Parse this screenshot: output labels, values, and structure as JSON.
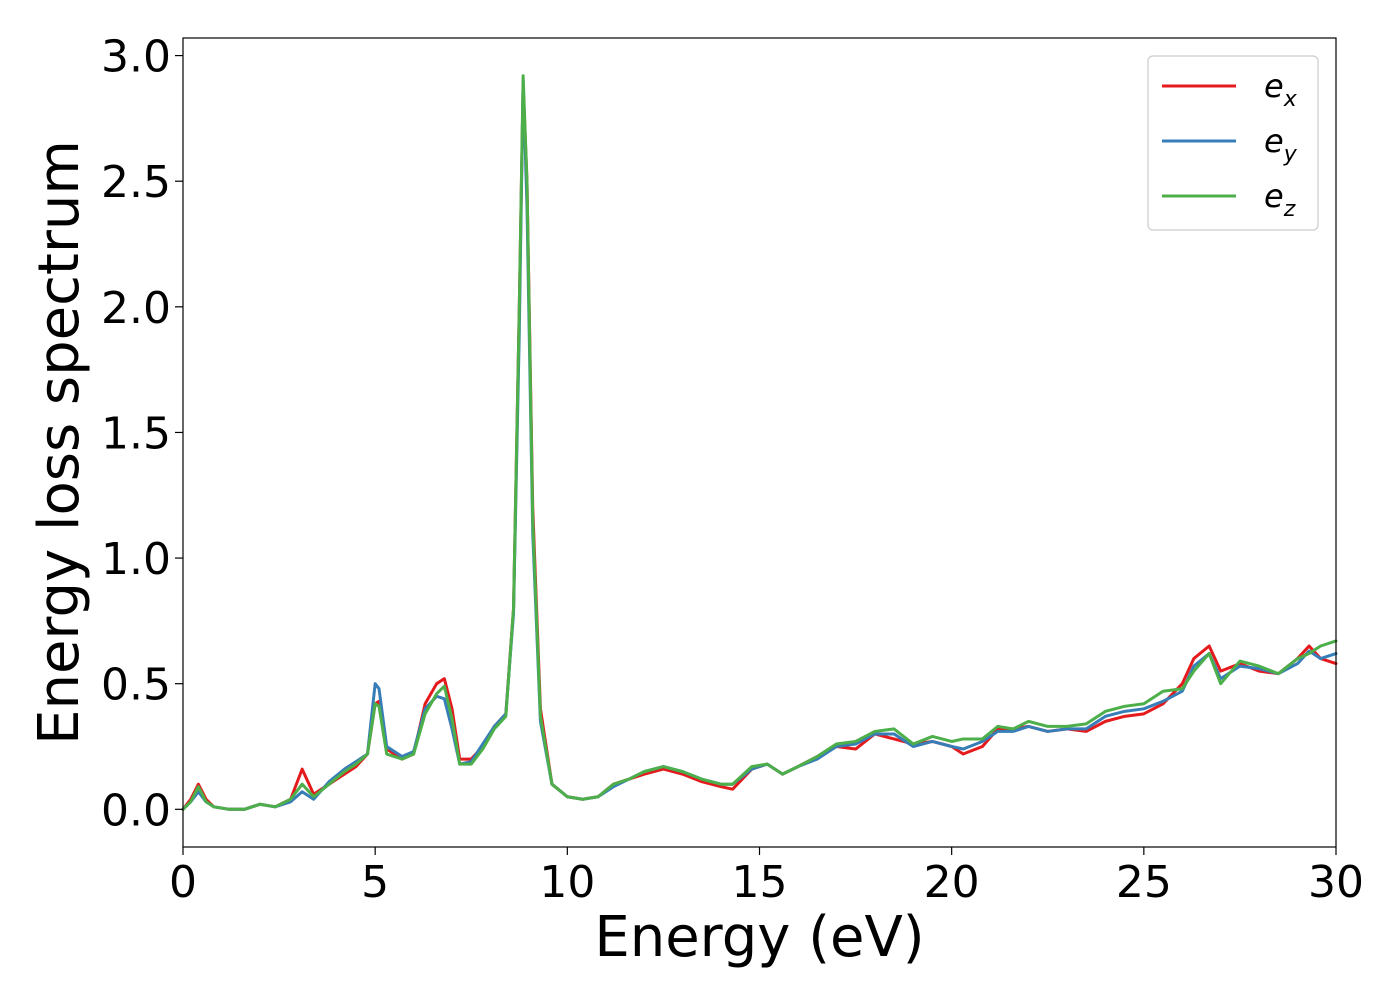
{
  "chart_data": {
    "type": "line",
    "title": "",
    "xlabel": "Energy (eV)",
    "ylabel": "Energy loss spectrum",
    "xlim": [
      0,
      30
    ],
    "ylim": [
      -0.15,
      3.07
    ],
    "xticks": [
      0,
      5,
      10,
      15,
      20,
      25,
      30
    ],
    "xtick_labels": [
      "0",
      "5",
      "10",
      "15",
      "20",
      "25",
      "30"
    ],
    "yticks": [
      0.0,
      0.5,
      1.0,
      1.5,
      2.0,
      2.5,
      3.0
    ],
    "ytick_labels": [
      "0.0",
      "0.5",
      "1.0",
      "1.5",
      "2.0",
      "2.5",
      "3.0"
    ],
    "grid": false,
    "legend_position": "top-right",
    "series": [
      {
        "name": "e",
        "subscript": "x",
        "color": "#e41a1c",
        "points": [
          [
            0,
            0.0
          ],
          [
            0.2,
            0.04
          ],
          [
            0.4,
            0.1
          ],
          [
            0.6,
            0.04
          ],
          [
            0.8,
            0.01
          ],
          [
            1.2,
            0.0
          ],
          [
            1.6,
            0.0
          ],
          [
            2.0,
            0.02
          ],
          [
            2.4,
            0.01
          ],
          [
            2.8,
            0.04
          ],
          [
            3.1,
            0.16
          ],
          [
            3.4,
            0.06
          ],
          [
            3.8,
            0.1
          ],
          [
            4.2,
            0.14
          ],
          [
            4.5,
            0.17
          ],
          [
            4.8,
            0.22
          ],
          [
            5.0,
            0.42
          ],
          [
            5.1,
            0.43
          ],
          [
            5.3,
            0.24
          ],
          [
            5.7,
            0.2
          ],
          [
            6.0,
            0.22
          ],
          [
            6.3,
            0.42
          ],
          [
            6.6,
            0.5
          ],
          [
            6.8,
            0.52
          ],
          [
            7.0,
            0.4
          ],
          [
            7.2,
            0.2
          ],
          [
            7.5,
            0.2
          ],
          [
            7.8,
            0.25
          ],
          [
            8.1,
            0.33
          ],
          [
            8.4,
            0.38
          ],
          [
            8.6,
            0.8
          ],
          [
            8.75,
            2.0
          ],
          [
            8.85,
            2.88
          ],
          [
            8.95,
            2.5
          ],
          [
            9.1,
            1.2
          ],
          [
            9.3,
            0.4
          ],
          [
            9.6,
            0.1
          ],
          [
            10.0,
            0.05
          ],
          [
            10.4,
            0.04
          ],
          [
            10.8,
            0.05
          ],
          [
            11.2,
            0.1
          ],
          [
            11.6,
            0.12
          ],
          [
            12.0,
            0.14
          ],
          [
            12.5,
            0.16
          ],
          [
            13.0,
            0.14
          ],
          [
            13.5,
            0.11
          ],
          [
            14.0,
            0.09
          ],
          [
            14.3,
            0.08
          ],
          [
            14.8,
            0.16
          ],
          [
            15.2,
            0.18
          ],
          [
            15.6,
            0.14
          ],
          [
            16.0,
            0.17
          ],
          [
            16.5,
            0.21
          ],
          [
            17.0,
            0.25
          ],
          [
            17.5,
            0.24
          ],
          [
            18.0,
            0.3
          ],
          [
            18.5,
            0.28
          ],
          [
            19.0,
            0.26
          ],
          [
            19.5,
            0.27
          ],
          [
            20.0,
            0.25
          ],
          [
            20.3,
            0.22
          ],
          [
            20.8,
            0.25
          ],
          [
            21.2,
            0.32
          ],
          [
            21.6,
            0.32
          ],
          [
            22.0,
            0.33
          ],
          [
            22.5,
            0.31
          ],
          [
            23.0,
            0.32
          ],
          [
            23.5,
            0.31
          ],
          [
            24.0,
            0.35
          ],
          [
            24.5,
            0.37
          ],
          [
            25.0,
            0.38
          ],
          [
            25.5,
            0.42
          ],
          [
            26.0,
            0.5
          ],
          [
            26.3,
            0.6
          ],
          [
            26.7,
            0.65
          ],
          [
            27.0,
            0.55
          ],
          [
            27.5,
            0.58
          ],
          [
            28.0,
            0.55
          ],
          [
            28.5,
            0.54
          ],
          [
            29.0,
            0.6
          ],
          [
            29.3,
            0.65
          ],
          [
            29.6,
            0.6
          ],
          [
            30.0,
            0.58
          ]
        ]
      },
      {
        "name": "e",
        "subscript": "y",
        "color": "#377eb8",
        "points": [
          [
            0,
            0.0
          ],
          [
            0.2,
            0.03
          ],
          [
            0.4,
            0.07
          ],
          [
            0.6,
            0.03
          ],
          [
            0.8,
            0.01
          ],
          [
            1.2,
            0.0
          ],
          [
            1.6,
            0.0
          ],
          [
            2.0,
            0.02
          ],
          [
            2.4,
            0.01
          ],
          [
            2.8,
            0.03
          ],
          [
            3.1,
            0.07
          ],
          [
            3.4,
            0.04
          ],
          [
            3.8,
            0.11
          ],
          [
            4.2,
            0.16
          ],
          [
            4.5,
            0.19
          ],
          [
            4.8,
            0.22
          ],
          [
            5.0,
            0.5
          ],
          [
            5.1,
            0.48
          ],
          [
            5.3,
            0.25
          ],
          [
            5.7,
            0.21
          ],
          [
            6.0,
            0.23
          ],
          [
            6.3,
            0.4
          ],
          [
            6.6,
            0.45
          ],
          [
            6.8,
            0.44
          ],
          [
            7.0,
            0.32
          ],
          [
            7.2,
            0.18
          ],
          [
            7.5,
            0.19
          ],
          [
            7.8,
            0.26
          ],
          [
            8.1,
            0.33
          ],
          [
            8.4,
            0.38
          ],
          [
            8.6,
            0.78
          ],
          [
            8.75,
            1.9
          ],
          [
            8.85,
            2.9
          ],
          [
            8.95,
            2.4
          ],
          [
            9.1,
            1.1
          ],
          [
            9.3,
            0.35
          ],
          [
            9.6,
            0.1
          ],
          [
            10.0,
            0.05
          ],
          [
            10.4,
            0.04
          ],
          [
            10.8,
            0.05
          ],
          [
            11.2,
            0.09
          ],
          [
            11.6,
            0.12
          ],
          [
            12.0,
            0.15
          ],
          [
            12.5,
            0.17
          ],
          [
            13.0,
            0.15
          ],
          [
            13.5,
            0.12
          ],
          [
            14.0,
            0.1
          ],
          [
            14.3,
            0.1
          ],
          [
            14.8,
            0.16
          ],
          [
            15.2,
            0.18
          ],
          [
            15.6,
            0.14
          ],
          [
            16.0,
            0.17
          ],
          [
            16.5,
            0.2
          ],
          [
            17.0,
            0.25
          ],
          [
            17.5,
            0.26
          ],
          [
            18.0,
            0.3
          ],
          [
            18.5,
            0.3
          ],
          [
            19.0,
            0.25
          ],
          [
            19.5,
            0.27
          ],
          [
            20.0,
            0.25
          ],
          [
            20.3,
            0.24
          ],
          [
            20.8,
            0.27
          ],
          [
            21.2,
            0.31
          ],
          [
            21.6,
            0.31
          ],
          [
            22.0,
            0.33
          ],
          [
            22.5,
            0.31
          ],
          [
            23.0,
            0.32
          ],
          [
            23.5,
            0.32
          ],
          [
            24.0,
            0.37
          ],
          [
            24.5,
            0.39
          ],
          [
            25.0,
            0.4
          ],
          [
            25.5,
            0.43
          ],
          [
            26.0,
            0.47
          ],
          [
            26.3,
            0.57
          ],
          [
            26.7,
            0.62
          ],
          [
            27.0,
            0.52
          ],
          [
            27.5,
            0.57
          ],
          [
            28.0,
            0.56
          ],
          [
            28.5,
            0.54
          ],
          [
            29.0,
            0.58
          ],
          [
            29.3,
            0.63
          ],
          [
            29.6,
            0.6
          ],
          [
            30.0,
            0.62
          ]
        ]
      },
      {
        "name": "e",
        "subscript": "z",
        "color": "#4daf4a",
        "points": [
          [
            0,
            0.0
          ],
          [
            0.2,
            0.03
          ],
          [
            0.4,
            0.09
          ],
          [
            0.6,
            0.03
          ],
          [
            0.8,
            0.01
          ],
          [
            1.2,
            0.0
          ],
          [
            1.6,
            0.0
          ],
          [
            2.0,
            0.02
          ],
          [
            2.4,
            0.01
          ],
          [
            2.8,
            0.04
          ],
          [
            3.1,
            0.1
          ],
          [
            3.4,
            0.05
          ],
          [
            3.8,
            0.1
          ],
          [
            4.2,
            0.15
          ],
          [
            4.5,
            0.18
          ],
          [
            4.8,
            0.22
          ],
          [
            5.0,
            0.42
          ],
          [
            5.1,
            0.41
          ],
          [
            5.3,
            0.22
          ],
          [
            5.7,
            0.2
          ],
          [
            6.0,
            0.22
          ],
          [
            6.3,
            0.38
          ],
          [
            6.6,
            0.46
          ],
          [
            6.8,
            0.49
          ],
          [
            7.0,
            0.36
          ],
          [
            7.2,
            0.18
          ],
          [
            7.5,
            0.18
          ],
          [
            7.8,
            0.24
          ],
          [
            8.1,
            0.32
          ],
          [
            8.4,
            0.37
          ],
          [
            8.6,
            0.8
          ],
          [
            8.75,
            2.0
          ],
          [
            8.85,
            2.92
          ],
          [
            8.95,
            2.5
          ],
          [
            9.1,
            1.15
          ],
          [
            9.3,
            0.37
          ],
          [
            9.6,
            0.1
          ],
          [
            10.0,
            0.05
          ],
          [
            10.4,
            0.04
          ],
          [
            10.8,
            0.05
          ],
          [
            11.2,
            0.1
          ],
          [
            11.6,
            0.12
          ],
          [
            12.0,
            0.15
          ],
          [
            12.5,
            0.17
          ],
          [
            13.0,
            0.15
          ],
          [
            13.5,
            0.12
          ],
          [
            14.0,
            0.1
          ],
          [
            14.3,
            0.1
          ],
          [
            14.8,
            0.17
          ],
          [
            15.2,
            0.18
          ],
          [
            15.6,
            0.14
          ],
          [
            16.0,
            0.17
          ],
          [
            16.5,
            0.21
          ],
          [
            17.0,
            0.26
          ],
          [
            17.5,
            0.27
          ],
          [
            18.0,
            0.31
          ],
          [
            18.5,
            0.32
          ],
          [
            19.0,
            0.26
          ],
          [
            19.5,
            0.29
          ],
          [
            20.0,
            0.27
          ],
          [
            20.3,
            0.28
          ],
          [
            20.8,
            0.28
          ],
          [
            21.2,
            0.33
          ],
          [
            21.6,
            0.32
          ],
          [
            22.0,
            0.35
          ],
          [
            22.5,
            0.33
          ],
          [
            23.0,
            0.33
          ],
          [
            23.5,
            0.34
          ],
          [
            24.0,
            0.39
          ],
          [
            24.5,
            0.41
          ],
          [
            25.0,
            0.42
          ],
          [
            25.5,
            0.47
          ],
          [
            26.0,
            0.48
          ],
          [
            26.3,
            0.55
          ],
          [
            26.7,
            0.62
          ],
          [
            27.0,
            0.5
          ],
          [
            27.5,
            0.59
          ],
          [
            28.0,
            0.57
          ],
          [
            28.5,
            0.54
          ],
          [
            29.0,
            0.6
          ],
          [
            29.3,
            0.62
          ],
          [
            29.6,
            0.65
          ],
          [
            30.0,
            0.67
          ]
        ]
      }
    ]
  }
}
